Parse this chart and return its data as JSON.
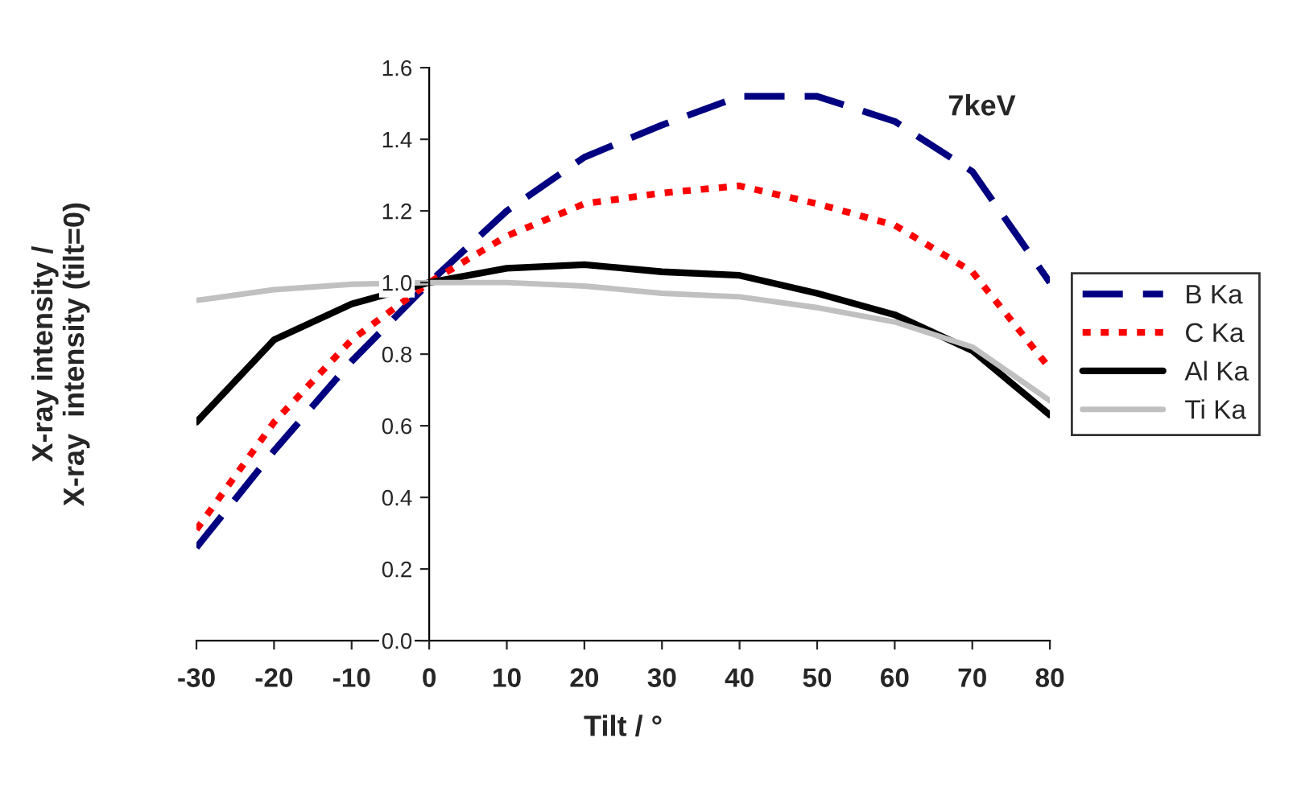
{
  "chart_data": {
    "type": "line",
    "xlabel": "Tilt / °",
    "ylabel": "X-ray intensity /\nX-ray  intensity (tilt=0)",
    "annotations": [
      "7keV"
    ],
    "x": [
      -30,
      -20,
      -10,
      0,
      10,
      20,
      30,
      40,
      50,
      60,
      70,
      80
    ],
    "series": [
      {
        "name": "B Ka",
        "color": "#000080",
        "line_style": "dashed",
        "values": [
          0.26,
          0.53,
          0.78,
          1.0,
          1.2,
          1.35,
          1.44,
          1.52,
          1.52,
          1.45,
          1.31,
          1.0
        ]
      },
      {
        "name": "C Ka",
        "color": "#ff0000",
        "line_style": "dotted",
        "values": [
          0.31,
          0.61,
          0.84,
          1.0,
          1.13,
          1.22,
          1.25,
          1.27,
          1.22,
          1.16,
          1.03,
          0.76
        ]
      },
      {
        "name": "Al Ka",
        "color": "#000000",
        "line_style": "solid",
        "values": [
          0.61,
          0.84,
          0.94,
          1.0,
          1.04,
          1.05,
          1.03,
          1.02,
          0.97,
          0.91,
          0.81,
          0.63
        ]
      },
      {
        "name": "Ti Ka",
        "color": "#c0c0c0",
        "line_style": "solid",
        "values": [
          0.95,
          0.98,
          0.995,
          1.0,
          1.0,
          0.99,
          0.97,
          0.96,
          0.93,
          0.89,
          0.82,
          0.67
        ]
      }
    ],
    "xlim": [
      -30,
      80
    ],
    "xticks": [
      -30,
      -20,
      -10,
      0,
      10,
      20,
      30,
      40,
      50,
      60,
      70,
      80
    ],
    "ylim": [
      0,
      1.6
    ],
    "yticks": [
      {
        "value": 0,
        "label": "0.0"
      },
      0.2,
      0.4,
      0.6,
      0.8,
      {
        "value": 1.0,
        "label": "1.0"
      },
      1.2,
      1.4,
      1.6
    ],
    "grid": false,
    "legend": "right",
    "marker": "none"
  }
}
